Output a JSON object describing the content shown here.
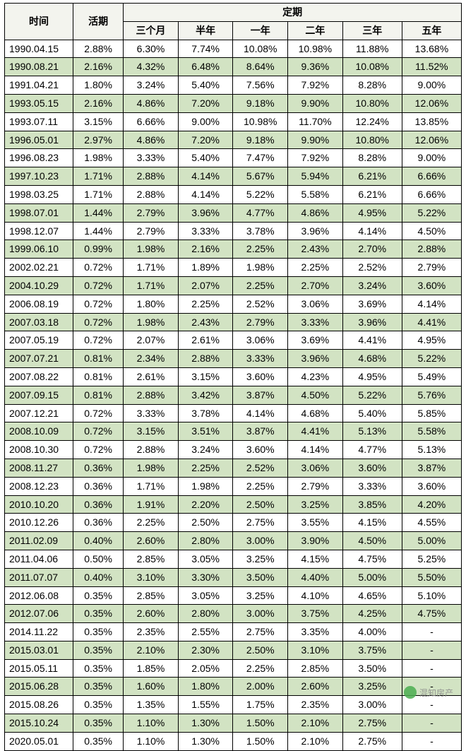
{
  "header": {
    "time": "时间",
    "demand": "活期",
    "fixed": "定期",
    "periods": [
      "三个月",
      "半年",
      "一年",
      "二年",
      "三年",
      "五年"
    ]
  },
  "colWidths": [
    "15%",
    "11%",
    "12%",
    "12%",
    "12%",
    "12%",
    "13%",
    "13%"
  ],
  "altRowColor": "#d2e3c3",
  "plainRowColor": "#ffffff",
  "headerBg": "#f3f4ee",
  "borderColor": "#000000",
  "fontSizePx": 14,
  "watermark": "混知房产",
  "rows": [
    {
      "date": "1990.04.15",
      "demand": "2.88%",
      "m3": "6.30%",
      "m6": "7.74%",
      "y1": "10.08%",
      "y2": "10.98%",
      "y3": "11.88%",
      "y5": "13.68%",
      "alt": false
    },
    {
      "date": "1990.08.21",
      "demand": "2.16%",
      "m3": "4.32%",
      "m6": "6.48%",
      "y1": "8.64%",
      "y2": "9.36%",
      "y3": "10.08%",
      "y5": "11.52%",
      "alt": true
    },
    {
      "date": "1991.04.21",
      "demand": "1.80%",
      "m3": "3.24%",
      "m6": "5.40%",
      "y1": "7.56%",
      "y2": "7.92%",
      "y3": "8.28%",
      "y5": "9.00%",
      "alt": false
    },
    {
      "date": "1993.05.15",
      "demand": "2.16%",
      "m3": "4.86%",
      "m6": "7.20%",
      "y1": "9.18%",
      "y2": "9.90%",
      "y3": "10.80%",
      "y5": "12.06%",
      "alt": true
    },
    {
      "date": "1993.07.11",
      "demand": "3.15%",
      "m3": "6.66%",
      "m6": "9.00%",
      "y1": "10.98%",
      "y2": "11.70%",
      "y3": "12.24%",
      "y5": "13.85%",
      "alt": false
    },
    {
      "date": "1996.05.01",
      "demand": "2.97%",
      "m3": "4.86%",
      "m6": "7.20%",
      "y1": "9.18%",
      "y2": "9.90%",
      "y3": "10.80%",
      "y5": "12.06%",
      "alt": true
    },
    {
      "date": "1996.08.23",
      "demand": "1.98%",
      "m3": "3.33%",
      "m6": "5.40%",
      "y1": "7.47%",
      "y2": "7.92%",
      "y3": "8.28%",
      "y5": "9.00%",
      "alt": false
    },
    {
      "date": "1997.10.23",
      "demand": "1.71%",
      "m3": "2.88%",
      "m6": "4.14%",
      "y1": "5.67%",
      "y2": "5.94%",
      "y3": "6.21%",
      "y5": "6.66%",
      "alt": true
    },
    {
      "date": "1998.03.25",
      "demand": "1.71%",
      "m3": "2.88%",
      "m6": "4.14%",
      "y1": "5.22%",
      "y2": "5.58%",
      "y3": "6.21%",
      "y5": "6.66%",
      "alt": false
    },
    {
      "date": "1998.07.01",
      "demand": "1.44%",
      "m3": "2.79%",
      "m6": "3.96%",
      "y1": "4.77%",
      "y2": "4.86%",
      "y3": "4.95%",
      "y5": "5.22%",
      "alt": true
    },
    {
      "date": "1998.12.07",
      "demand": "1.44%",
      "m3": "2.79%",
      "m6": "3.33%",
      "y1": "3.78%",
      "y2": "3.96%",
      "y3": "4.14%",
      "y5": "4.50%",
      "alt": false
    },
    {
      "date": "1999.06.10",
      "demand": "0.99%",
      "m3": "1.98%",
      "m6": "2.16%",
      "y1": "2.25%",
      "y2": "2.43%",
      "y3": "2.70%",
      "y5": "2.88%",
      "alt": true
    },
    {
      "date": "2002.02.21",
      "demand": "0.72%",
      "m3": "1.71%",
      "m6": "1.89%",
      "y1": "1.98%",
      "y2": "2.25%",
      "y3": "2.52%",
      "y5": "2.79%",
      "alt": false
    },
    {
      "date": "2004.10.29",
      "demand": "0.72%",
      "m3": "1.71%",
      "m6": "2.07%",
      "y1": "2.25%",
      "y2": "2.70%",
      "y3": "3.24%",
      "y5": "3.60%",
      "alt": true
    },
    {
      "date": "2006.08.19",
      "demand": "0.72%",
      "m3": "1.80%",
      "m6": "2.25%",
      "y1": "2.52%",
      "y2": "3.06%",
      "y3": "3.69%",
      "y5": "4.14%",
      "alt": false
    },
    {
      "date": "2007.03.18",
      "demand": "0.72%",
      "m3": "1.98%",
      "m6": "2.43%",
      "y1": "2.79%",
      "y2": "3.33%",
      "y3": "3.96%",
      "y5": "4.41%",
      "alt": true
    },
    {
      "date": "2007.05.19",
      "demand": "0.72%",
      "m3": "2.07%",
      "m6": "2.61%",
      "y1": "3.06%",
      "y2": "3.69%",
      "y3": "4.41%",
      "y5": "4.95%",
      "alt": false
    },
    {
      "date": "2007.07.21",
      "demand": "0.81%",
      "m3": "2.34%",
      "m6": "2.88%",
      "y1": "3.33%",
      "y2": "3.96%",
      "y3": "4.68%",
      "y5": "5.22%",
      "alt": true
    },
    {
      "date": "2007.08.22",
      "demand": "0.81%",
      "m3": "2.61%",
      "m6": "3.15%",
      "y1": "3.60%",
      "y2": "4.23%",
      "y3": "4.95%",
      "y5": "5.49%",
      "alt": false
    },
    {
      "date": "2007.09.15",
      "demand": "0.81%",
      "m3": "2.88%",
      "m6": "3.42%",
      "y1": "3.87%",
      "y2": "4.50%",
      "y3": "5.22%",
      "y5": "5.76%",
      "alt": true
    },
    {
      "date": "2007.12.21",
      "demand": "0.72%",
      "m3": "3.33%",
      "m6": "3.78%",
      "y1": "4.14%",
      "y2": "4.68%",
      "y3": "5.40%",
      "y5": "5.85%",
      "alt": false
    },
    {
      "date": "2008.10.09",
      "demand": "0.72%",
      "m3": "3.15%",
      "m6": "3.51%",
      "y1": "3.87%",
      "y2": "4.41%",
      "y3": "5.13%",
      "y5": "5.58%",
      "alt": true
    },
    {
      "date": "2008.10.30",
      "demand": "0.72%",
      "m3": "2.88%",
      "m6": "3.24%",
      "y1": "3.60%",
      "y2": "4.14%",
      "y3": "4.77%",
      "y5": "5.13%",
      "alt": false
    },
    {
      "date": "2008.11.27",
      "demand": "0.36%",
      "m3": "1.98%",
      "m6": "2.25%",
      "y1": "2.52%",
      "y2": "3.06%",
      "y3": "3.60%",
      "y5": "3.87%",
      "alt": true
    },
    {
      "date": "2008.12.23",
      "demand": "0.36%",
      "m3": "1.71%",
      "m6": "1.98%",
      "y1": "2.25%",
      "y2": "2.79%",
      "y3": "3.33%",
      "y5": "3.60%",
      "alt": false
    },
    {
      "date": "2010.10.20",
      "demand": "0.36%",
      "m3": "1.91%",
      "m6": "2.20%",
      "y1": "2.50%",
      "y2": "3.25%",
      "y3": "3.85%",
      "y5": "4.20%",
      "alt": true
    },
    {
      "date": "2010.12.26",
      "demand": "0.36%",
      "m3": "2.25%",
      "m6": "2.50%",
      "y1": "2.75%",
      "y2": "3.55%",
      "y3": "4.15%",
      "y5": "4.55%",
      "alt": false
    },
    {
      "date": "2011.02.09",
      "demand": "0.40%",
      "m3": "2.60%",
      "m6": "2.80%",
      "y1": "3.00%",
      "y2": "3.90%",
      "y3": "4.50%",
      "y5": "5.00%",
      "alt": true
    },
    {
      "date": "2011.04.06",
      "demand": "0.50%",
      "m3": "2.85%",
      "m6": "3.05%",
      "y1": "3.25%",
      "y2": "4.15%",
      "y3": "4.75%",
      "y5": "5.25%",
      "alt": false
    },
    {
      "date": "2011.07.07",
      "demand": "0.40%",
      "m3": "3.10%",
      "m6": "3.30%",
      "y1": "3.50%",
      "y2": "4.40%",
      "y3": "5.00%",
      "y5": "5.50%",
      "alt": true
    },
    {
      "date": "2012.06.08",
      "demand": "0.35%",
      "m3": "2.85%",
      "m6": "3.05%",
      "y1": "3.25%",
      "y2": "4.10%",
      "y3": "4.65%",
      "y5": "5.10%",
      "alt": false
    },
    {
      "date": "2012.07.06",
      "demand": "0.35%",
      "m3": "2.60%",
      "m6": "2.80%",
      "y1": "3.00%",
      "y2": "3.75%",
      "y3": "4.25%",
      "y5": "4.75%",
      "alt": true
    },
    {
      "date": "2014.11.22",
      "demand": "0.35%",
      "m3": "2.35%",
      "m6": "2.55%",
      "y1": "2.75%",
      "y2": "3.35%",
      "y3": "4.00%",
      "y5": "-",
      "alt": false
    },
    {
      "date": "2015.03.01",
      "demand": "0.35%",
      "m3": "2.10%",
      "m6": "2.30%",
      "y1": "2.50%",
      "y2": "3.10%",
      "y3": "3.75%",
      "y5": "-",
      "alt": true
    },
    {
      "date": "2015.05.11",
      "demand": "0.35%",
      "m3": "1.85%",
      "m6": "2.05%",
      "y1": "2.25%",
      "y2": "2.85%",
      "y3": "3.50%",
      "y5": "-",
      "alt": false
    },
    {
      "date": "2015.06.28",
      "demand": "0.35%",
      "m3": "1.60%",
      "m6": "1.80%",
      "y1": "2.00%",
      "y2": "2.60%",
      "y3": "3.25%",
      "y5": "-",
      "alt": true
    },
    {
      "date": "2015.08.26",
      "demand": "0.35%",
      "m3": "1.35%",
      "m6": "1.55%",
      "y1": "1.75%",
      "y2": "2.35%",
      "y3": "3.00%",
      "y5": "-",
      "alt": false
    },
    {
      "date": "2015.10.24",
      "demand": "0.35%",
      "m3": "1.10%",
      "m6": "1.30%",
      "y1": "1.50%",
      "y2": "2.10%",
      "y3": "2.75%",
      "y5": "-",
      "alt": true
    },
    {
      "date": "2020.05.01",
      "demand": "0.35%",
      "m3": "1.10%",
      "m6": "1.30%",
      "y1": "1.50%",
      "y2": "2.10%",
      "y3": "2.75%",
      "y5": "-",
      "alt": false
    }
  ]
}
